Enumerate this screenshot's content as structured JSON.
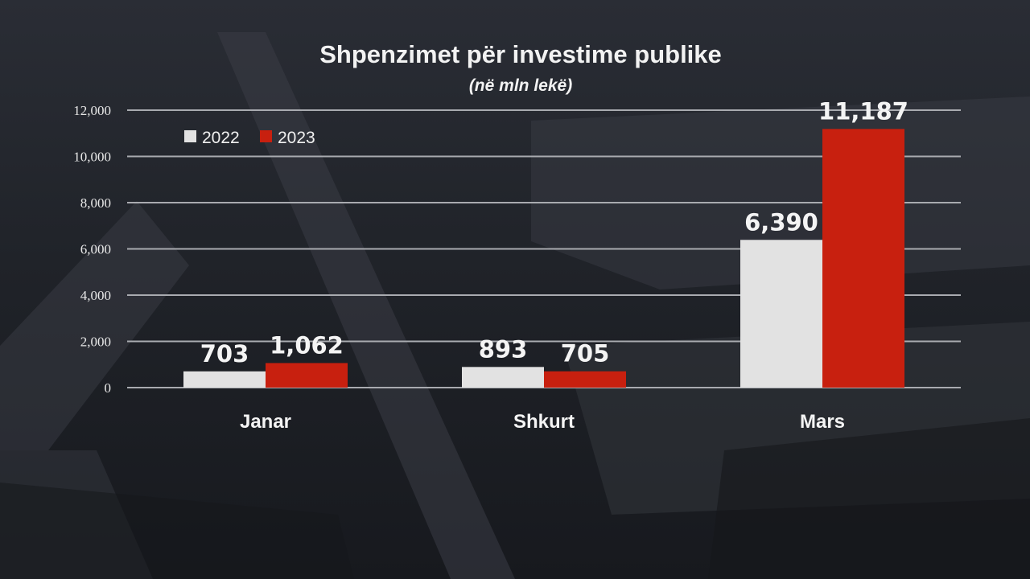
{
  "colors": {
    "series_2022": "#e2e2e2",
    "series_2023": "#c8200f",
    "grid": "#a9abb0",
    "text": "#f2f2f2"
  },
  "chart_data": {
    "type": "bar",
    "title": "Shpenzimet për investime publike",
    "subtitle": "(në mln lekë)",
    "xlabel": "",
    "ylabel": "",
    "categories": [
      "Janar",
      "Shkurt",
      "Mars"
    ],
    "series": [
      {
        "name": "2022",
        "values": [
          703,
          893,
          6390
        ],
        "labels": [
          "703",
          "893",
          "6,390"
        ]
      },
      {
        "name": "2023",
        "values": [
          1062,
          705,
          11187
        ],
        "labels": [
          "1,062",
          "705",
          "11,187"
        ]
      }
    ],
    "ylim": [
      0,
      12000
    ],
    "yticks": [
      0,
      2000,
      4000,
      6000,
      8000,
      10000,
      12000
    ],
    "ytick_labels": [
      "0",
      "2,000",
      "4,000",
      "6,000",
      "8,000",
      "10,000",
      "12,000"
    ],
    "grid": true,
    "legend_position": "top-left"
  }
}
